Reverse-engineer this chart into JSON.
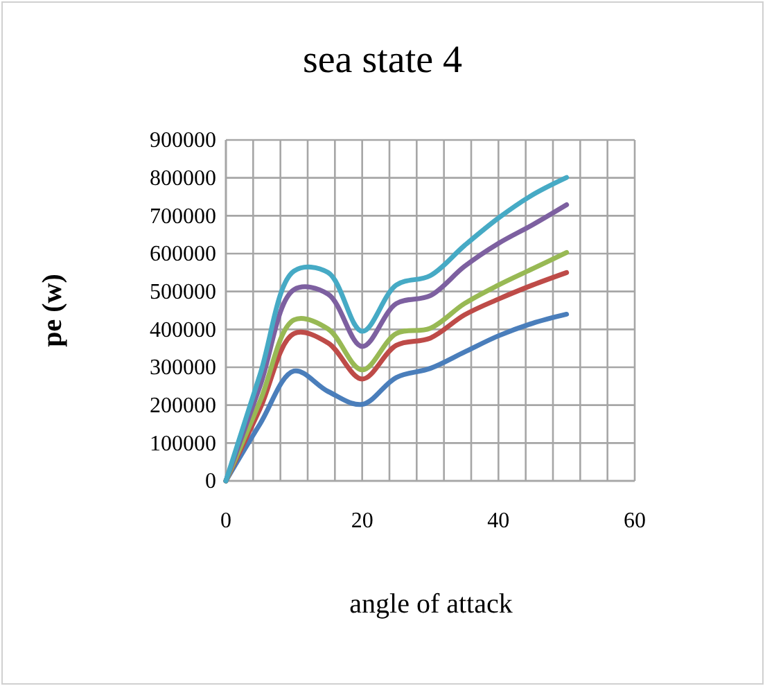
{
  "chart_data": {
    "type": "line",
    "title": "sea state 4",
    "xlabel": "angle of attack",
    "ylabel": "pe (w)",
    "x": [
      0,
      5,
      10,
      15,
      20,
      25,
      30,
      35,
      40,
      45,
      50
    ],
    "series": [
      {
        "color": "#4a7ebb",
        "values": [
          0,
          150000,
          290000,
          236000,
          202000,
          273000,
          297000,
          340000,
          383000,
          416000,
          440000
        ]
      },
      {
        "color": "#be4b48",
        "values": [
          0,
          190000,
          389000,
          364000,
          269000,
          358000,
          377000,
          438000,
          480000,
          517000,
          550000
        ]
      },
      {
        "color": "#98b954",
        "values": [
          0,
          210000,
          425000,
          401000,
          293000,
          389000,
          403000,
          468000,
          517000,
          560000,
          603000
        ]
      },
      {
        "color": "#7d60a0",
        "values": [
          0,
          250000,
          505000,
          493000,
          355000,
          468000,
          489000,
          566000,
          627000,
          676000,
          729000
        ]
      },
      {
        "color": "#46aac5",
        "values": [
          0,
          280000,
          554000,
          550000,
          395000,
          517000,
          542000,
          621000,
          694000,
          755000,
          801000
        ]
      }
    ],
    "xlim": [
      0,
      60
    ],
    "xticks": [
      0,
      {
        "value": 4,
        "label": null
      },
      {
        "value": 8,
        "label": null
      },
      {
        "value": 12,
        "label": null
      },
      {
        "value": 16,
        "label": null
      },
      20,
      {
        "value": 24,
        "label": null
      },
      {
        "value": 28,
        "label": null
      },
      {
        "value": 32,
        "label": null
      },
      {
        "value": 36,
        "label": null
      },
      40,
      {
        "value": 44,
        "label": null
      },
      {
        "value": 48,
        "label": null
      },
      {
        "value": 52,
        "label": null
      },
      {
        "value": 56,
        "label": null
      },
      60
    ],
    "ylim": [
      0,
      900000
    ],
    "yticks": [
      0,
      100000,
      200000,
      300000,
      400000,
      500000,
      600000,
      700000,
      800000,
      900000
    ],
    "grid": true,
    "marker": "none",
    "line_style": "solid"
  }
}
